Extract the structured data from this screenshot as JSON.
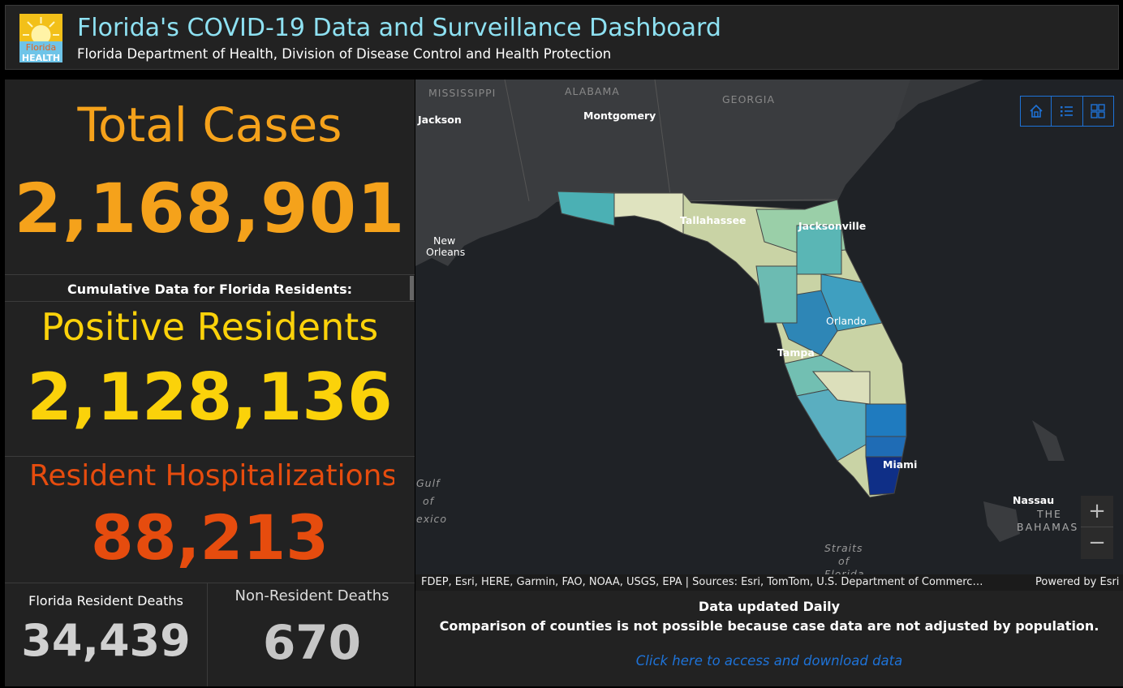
{
  "header": {
    "title": "Florida's COVID-19 Data and Surveillance Dashboard",
    "subtitle": "Florida Department of Health, Division of Disease Control and Health Protection",
    "logo_line1": "Florida",
    "logo_line2": "HEALTH"
  },
  "panel": {
    "total_cases_label": "Total Cases",
    "total_cases_value": "2,168,901",
    "cumulative_label": "Cumulative Data for Florida Residents:",
    "positive_residents_label": "Positive Residents",
    "positive_residents_value": "2,128,136",
    "hospitalizations_label": "Resident Hospitalizations",
    "hospitalizations_value": "88,213",
    "resident_deaths_label": "Florida Resident Deaths",
    "resident_deaths_value": "34,439",
    "nonresident_deaths_label": "Non-Resident Deaths",
    "nonresident_deaths_value": "670"
  },
  "colors": {
    "orange": "#f5a21b",
    "yellow": "#fbd20a",
    "red_orange": "#e64c0e",
    "grey_value": "#d0d0d0",
    "accent_blue": "#1e73d8",
    "title_cyan": "#8ee1f2"
  },
  "map": {
    "labels": {
      "mississippi": "MISSISSIPPI",
      "alabama": "ALABAMA",
      "georgia": "GEORGIA",
      "jackson": "Jackson",
      "montgomery": "Montgomery",
      "new": "New",
      "orleans": "Orleans",
      "tallahassee": "Tallahassee",
      "jacksonville": "Jacksonville",
      "orlando": "Orlando",
      "tampa": "Tampa",
      "miami": "Miami",
      "gulf1": "Gulf",
      "gulf2": "of",
      "gulf3": "exico",
      "straits1": "Straits",
      "straits2": "of",
      "straits3": "Florida",
      "nassau": "Nassau",
      "the": "THE",
      "bahamas": "BAHAMAS"
    },
    "buttons": {
      "home": "home-icon",
      "legend": "legend-list-icon",
      "basemap": "basemap-gallery-icon"
    },
    "zoom_in": "+",
    "zoom_out": "−",
    "attribution": "FDEP, Esri, HERE, Garmin, FAO, NOAA, USGS, EPA | Sources: Esri, TomTom, U.S. Department of Commerc…",
    "powered_by": "Powered by Esri"
  },
  "footer": {
    "updated": "Data updated Daily",
    "comparison_note": "Comparison of counties is not possible because case data are not adjusted by population.",
    "download_link": "Click here to access and download data"
  }
}
